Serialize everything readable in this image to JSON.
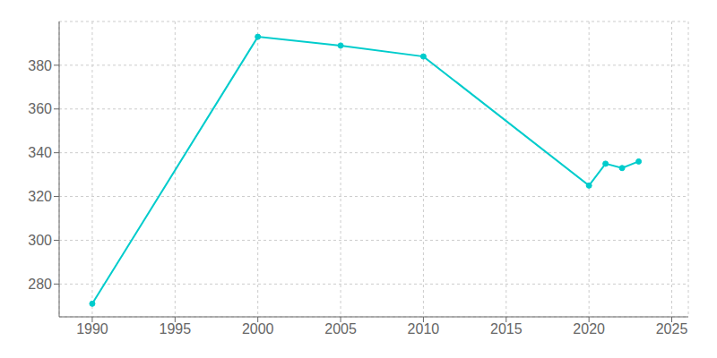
{
  "chart_data": {
    "type": "line",
    "x": [
      1990,
      2000,
      2005,
      2010,
      2020,
      2021,
      2022,
      2023
    ],
    "values": [
      271,
      393,
      389,
      384,
      325,
      335,
      333,
      336
    ],
    "color": "#00CCCC",
    "marker": "circle",
    "xlim": [
      1988,
      2026
    ],
    "ylim": [
      265,
      400
    ],
    "xticks": [
      1990,
      1995,
      2000,
      2005,
      2010,
      2015,
      2020,
      2025
    ],
    "yticks": [
      280,
      300,
      320,
      340,
      360,
      380
    ],
    "grid": true
  }
}
